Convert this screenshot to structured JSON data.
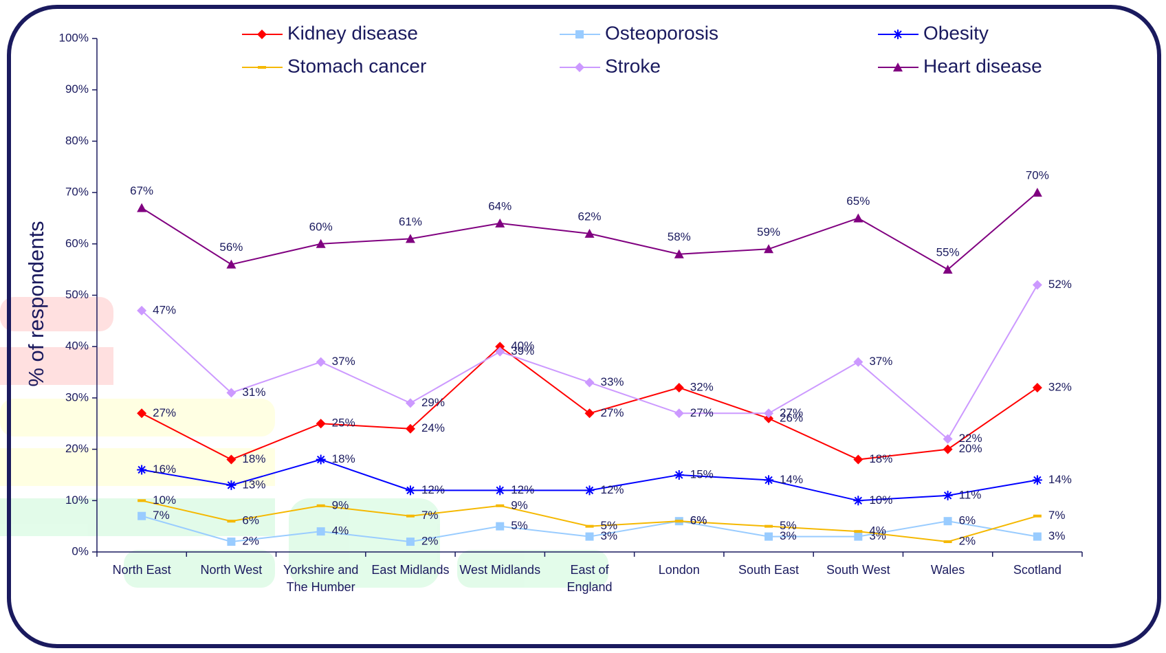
{
  "chart_data": {
    "type": "line",
    "y_label": "% of respondents",
    "categories": [
      "North East",
      "North West",
      "Yorkshire and The Humber",
      "East Midlands",
      "West Midlands",
      "East of England",
      "London",
      "South East",
      "South West",
      "Wales",
      "Scotland"
    ],
    "ylim": [
      0,
      100
    ],
    "yticks": [
      {
        "value": 0,
        "label": "0%"
      },
      {
        "value": 10,
        "label": "10%"
      },
      {
        "value": 20,
        "label": "20%"
      },
      {
        "value": 30,
        "label": "30%"
      },
      {
        "value": 40,
        "label": "40%"
      },
      {
        "value": 50,
        "label": "50%"
      },
      {
        "value": 60,
        "label": "60%"
      },
      {
        "value": 70,
        "label": "70%"
      },
      {
        "value": 80,
        "label": "80%"
      },
      {
        "value": 90,
        "label": "90%"
      },
      {
        "value": 100,
        "label": "100%"
      }
    ],
    "grid": false,
    "series": [
      {
        "name": "Kidney disease",
        "color": "#ff0000",
        "marker": "diamond",
        "values": [
          27,
          18,
          25,
          24,
          40,
          27,
          32,
          26,
          18,
          20,
          32
        ],
        "value_labels": [
          "27%",
          "18%",
          "25%",
          "24%",
          "40%",
          "27%",
          "32%",
          "26%",
          "18%",
          "20%",
          "32%"
        ]
      },
      {
        "name": "Osteoporosis",
        "color": "#99ccff",
        "marker": "square",
        "values": [
          7,
          2,
          4,
          2,
          5,
          3,
          6,
          3,
          3,
          6,
          3
        ],
        "value_labels": [
          "7%",
          "2%",
          "4%",
          "2%",
          "5%",
          "3%",
          "6%",
          "3%",
          "3%",
          "6%",
          "3%"
        ]
      },
      {
        "name": "Obesity",
        "color": "#0000ff",
        "marker": "asterisk",
        "values": [
          16,
          13,
          18,
          12,
          12,
          12,
          15,
          14,
          10,
          11,
          14
        ],
        "value_labels": [
          "16%",
          "13%",
          "18%",
          "12%",
          "12%",
          "12%",
          "15%",
          "14%",
          "10%",
          "11%",
          "14%"
        ]
      },
      {
        "name": "Stomach cancer",
        "color": "#f5b800",
        "marker": "dash",
        "values": [
          10,
          6,
          9,
          7,
          9,
          5,
          6,
          5,
          4,
          2,
          7
        ],
        "value_labels": [
          "10%",
          "6%",
          "9%",
          "7%",
          "9%",
          "5%",
          "6%",
          "5%",
          "4%",
          "2%",
          "7%"
        ]
      },
      {
        "name": "Stroke",
        "color": "#cc99ff",
        "marker": "diamond",
        "values": [
          47,
          31,
          37,
          29,
          39,
          33,
          27,
          27,
          37,
          22,
          52
        ],
        "value_labels": [
          "47%",
          "31%",
          "37%",
          "29%",
          "39%",
          "33%",
          "27%",
          "27%",
          "37%",
          "22%",
          "52%"
        ]
      },
      {
        "name": "Heart disease",
        "color": "#800080",
        "marker": "triangle",
        "values": [
          67,
          56,
          60,
          61,
          64,
          62,
          58,
          59,
          65,
          55,
          70
        ],
        "value_labels": [
          "67%",
          "56%",
          "60%",
          "61%",
          "64%",
          "62%",
          "58%",
          "59%",
          "65%",
          "55%",
          "70%"
        ]
      }
    ]
  }
}
